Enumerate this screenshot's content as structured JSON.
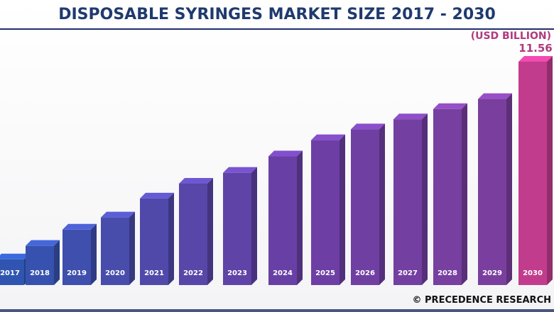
{
  "chart_data": {
    "type": "bar",
    "title": "DISPOSABLE SYRINGES MARKET SIZE 2017 - 2030",
    "unit_label": "(USD BILLION)",
    "categories": [
      "2017",
      "2018",
      "2019",
      "2020",
      "2021",
      "2022",
      "2023",
      "2024",
      "2025",
      "2026",
      "2027",
      "2028",
      "2029",
      "2030"
    ],
    "values": [
      1.33,
      2.03,
      2.87,
      3.5,
      4.48,
      5.25,
      5.81,
      6.66,
      7.5,
      8.06,
      8.58,
      9.11,
      9.63,
      11.56
    ],
    "data_labels": {
      "2030": "11.56"
    },
    "ylim": [
      0,
      12
    ],
    "grid": false,
    "colors": {
      "start": "#2f55b0",
      "mid": "#6a3fa5",
      "end": "#c23c8e"
    },
    "credit": "© PRECEDENCE RESEARCH"
  }
}
